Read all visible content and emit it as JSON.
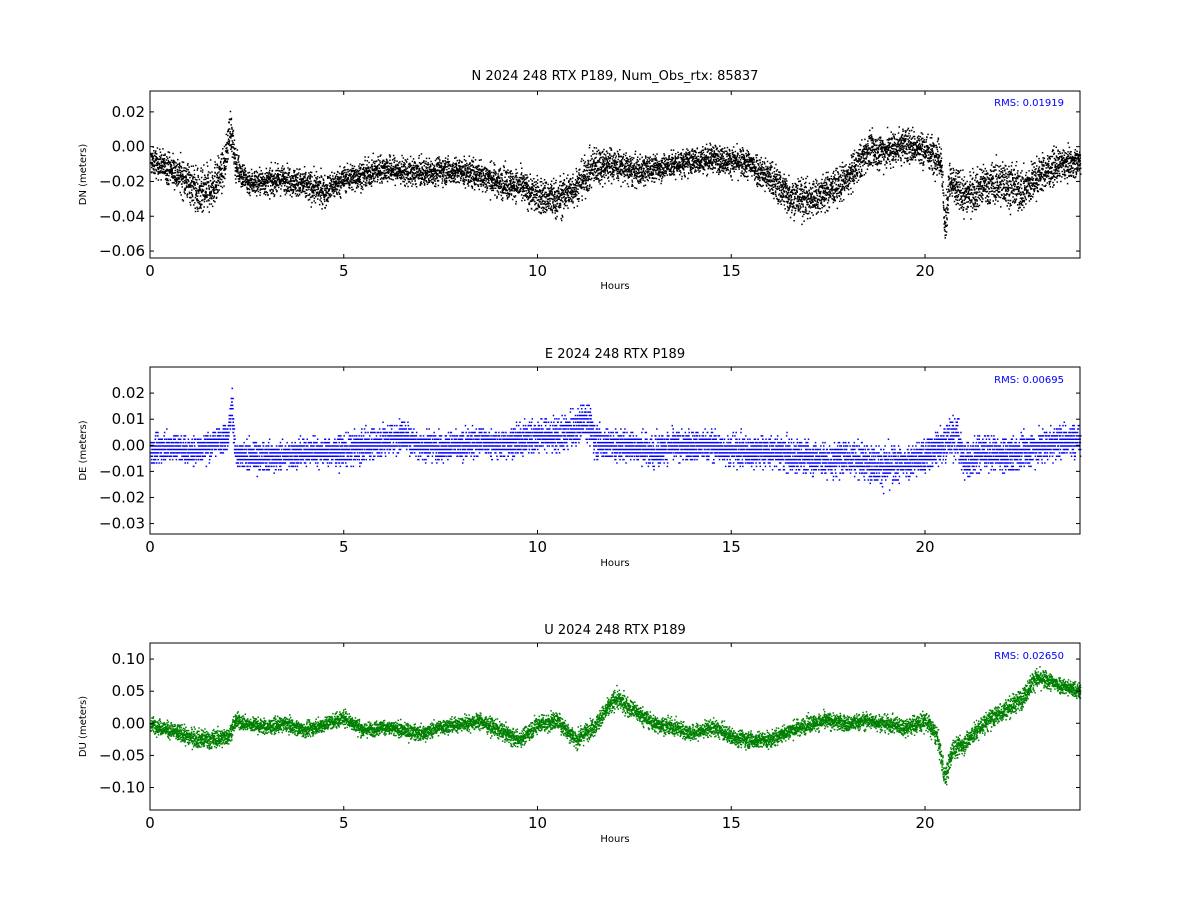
{
  "chart_data": [
    {
      "type": "scatter",
      "title": "N 2024 248 RTX  P189, Num_Obs_rtx: 85837",
      "xlabel": "Hours",
      "ylabel": "DN (meters)",
      "xlim": [
        0,
        24
      ],
      "ylim": [
        -0.064,
        0.032
      ],
      "xticks": [
        0,
        5,
        10,
        15,
        20
      ],
      "xtick_labels": [
        "0",
        "5",
        "10",
        "15",
        "20"
      ],
      "yticks": [
        0.02,
        0.0,
        -0.02,
        -0.04,
        -0.06
      ],
      "ytick_labels": [
        "0.02",
        "0.00",
        "−0.02",
        "−0.04",
        "−0.06"
      ],
      "rms_label": "RMS:  0.01919",
      "rms_color": "#0000ff",
      "color": "#000000",
      "grid": false,
      "series": [
        {
          "x": [
            0.0,
            0.5,
            1.0,
            1.3,
            1.6,
            1.9,
            2.05,
            2.2,
            2.5,
            3.0,
            3.5,
            4.0,
            4.5,
            5.0,
            5.5,
            6.0,
            6.5,
            7.0,
            7.5,
            8.0,
            8.5,
            9.0,
            9.5,
            10.0,
            10.5,
            11.0,
            11.5,
            12.0,
            12.5,
            13.0,
            13.5,
            14.0,
            14.5,
            15.0,
            15.5,
            16.0,
            16.5,
            17.0,
            17.5,
            18.0,
            18.5,
            19.0,
            19.5,
            20.0,
            20.4,
            20.5,
            20.6,
            21.0,
            21.5,
            22.0,
            22.5,
            23.0,
            23.5,
            24.0
          ],
          "center": [
            -0.008,
            -0.012,
            -0.02,
            -0.028,
            -0.022,
            -0.012,
            0.012,
            -0.01,
            -0.02,
            -0.02,
            -0.018,
            -0.022,
            -0.025,
            -0.018,
            -0.016,
            -0.012,
            -0.014,
            -0.015,
            -0.013,
            -0.014,
            -0.016,
            -0.02,
            -0.022,
            -0.028,
            -0.03,
            -0.022,
            -0.01,
            -0.01,
            -0.014,
            -0.012,
            -0.01,
            -0.008,
            -0.006,
            -0.008,
            -0.01,
            -0.018,
            -0.028,
            -0.03,
            -0.025,
            -0.018,
            -0.002,
            -0.002,
            0.002,
            -0.002,
            -0.006,
            -0.048,
            -0.02,
            -0.028,
            -0.022,
            -0.02,
            -0.025,
            -0.015,
            -0.01,
            -0.008
          ],
          "spread": [
            0.012,
            0.014,
            0.018,
            0.022,
            0.02,
            0.016,
            0.018,
            0.014,
            0.012,
            0.012,
            0.012,
            0.014,
            0.014,
            0.012,
            0.012,
            0.012,
            0.012,
            0.012,
            0.012,
            0.012,
            0.014,
            0.014,
            0.014,
            0.016,
            0.018,
            0.016,
            0.018,
            0.014,
            0.014,
            0.012,
            0.012,
            0.012,
            0.012,
            0.012,
            0.014,
            0.016,
            0.018,
            0.018,
            0.016,
            0.016,
            0.016,
            0.016,
            0.016,
            0.016,
            0.016,
            0.02,
            0.018,
            0.018,
            0.018,
            0.02,
            0.02,
            0.016,
            0.014,
            0.012
          ]
        }
      ]
    },
    {
      "type": "scatter",
      "title": "E 2024 248 RTX  P189",
      "xlabel": "Hours",
      "ylabel": "DE (meters)",
      "xlim": [
        0,
        24
      ],
      "ylim": [
        -0.034,
        0.03
      ],
      "xticks": [
        0,
        5,
        10,
        15,
        20
      ],
      "xtick_labels": [
        "0",
        "5",
        "10",
        "15",
        "20"
      ],
      "yticks": [
        0.02,
        0.01,
        0.0,
        -0.01,
        -0.02,
        -0.03
      ],
      "ytick_labels": [
        "0.02",
        "0.01",
        "0.00",
        "−0.01",
        "−0.02",
        "−0.03"
      ],
      "rms_label": "RMS:  0.00695",
      "rms_color": "#0000ff",
      "color": "#0000ff",
      "grid": false,
      "series": [
        {
          "x": [
            0.0,
            0.5,
            1.0,
            1.5,
            2.0,
            2.1,
            2.2,
            2.5,
            3.0,
            3.5,
            4.0,
            4.5,
            5.0,
            5.5,
            6.0,
            6.5,
            7.0,
            7.5,
            8.0,
            8.5,
            9.0,
            9.5,
            10.0,
            10.5,
            11.0,
            11.2,
            11.5,
            12.0,
            12.5,
            13.0,
            13.5,
            14.0,
            14.5,
            15.0,
            15.5,
            16.0,
            16.5,
            17.0,
            17.5,
            18.0,
            18.5,
            19.0,
            19.5,
            20.0,
            20.5,
            20.8,
            21.0,
            21.5,
            22.0,
            22.5,
            23.0,
            23.5,
            24.0
          ],
          "center": [
            -0.002,
            0.0,
            -0.002,
            0.0,
            0.004,
            0.016,
            -0.004,
            -0.004,
            -0.004,
            -0.004,
            -0.002,
            -0.002,
            -0.002,
            0.0,
            0.002,
            0.004,
            0.0,
            0.0,
            0.0,
            0.002,
            0.0,
            0.002,
            0.004,
            0.004,
            0.006,
            0.012,
            0.002,
            0.0,
            0.0,
            -0.002,
            0.0,
            0.0,
            0.0,
            -0.002,
            -0.002,
            -0.002,
            -0.004,
            -0.004,
            -0.006,
            -0.004,
            -0.006,
            -0.008,
            -0.006,
            -0.004,
            0.002,
            0.004,
            -0.006,
            -0.002,
            -0.004,
            -0.002,
            0.0,
            0.002,
            0.002
          ],
          "spread": [
            0.008,
            0.008,
            0.008,
            0.008,
            0.008,
            0.012,
            0.008,
            0.008,
            0.008,
            0.008,
            0.008,
            0.008,
            0.009,
            0.009,
            0.009,
            0.009,
            0.008,
            0.008,
            0.008,
            0.008,
            0.008,
            0.009,
            0.01,
            0.01,
            0.01,
            0.012,
            0.01,
            0.009,
            0.009,
            0.009,
            0.009,
            0.009,
            0.009,
            0.009,
            0.009,
            0.009,
            0.01,
            0.01,
            0.01,
            0.01,
            0.01,
            0.012,
            0.01,
            0.01,
            0.012,
            0.012,
            0.012,
            0.01,
            0.01,
            0.01,
            0.01,
            0.01,
            0.01
          ]
        }
      ]
    },
    {
      "type": "scatter",
      "title": "U 2024 248 RTX  P189",
      "xlabel": "Hours",
      "ylabel": "DU (meters)",
      "xlim": [
        0,
        24
      ],
      "ylim": [
        -0.135,
        0.125
      ],
      "xticks": [
        0,
        5,
        10,
        15,
        20
      ],
      "xtick_labels": [
        "0",
        "5",
        "10",
        "15",
        "20"
      ],
      "yticks": [
        0.1,
        0.05,
        0.0,
        -0.05,
        -0.1
      ],
      "ytick_labels": [
        "0.10",
        "0.05",
        "0.00",
        "−0.05",
        "−0.10"
      ],
      "rms_label": "RMS:  0.02650",
      "rms_color": "#0000ff",
      "color": "#008000",
      "grid": false,
      "series": [
        {
          "x": [
            0.0,
            0.5,
            1.0,
            1.5,
            2.0,
            2.2,
            2.5,
            3.0,
            3.5,
            4.0,
            4.5,
            5.0,
            5.5,
            6.0,
            6.5,
            7.0,
            7.5,
            8.0,
            8.5,
            9.0,
            9.5,
            10.0,
            10.5,
            11.0,
            11.5,
            12.0,
            12.5,
            13.0,
            13.5,
            14.0,
            14.5,
            15.0,
            15.5,
            16.0,
            16.5,
            17.0,
            17.5,
            18.0,
            18.5,
            19.0,
            19.5,
            20.0,
            20.3,
            20.5,
            20.7,
            21.0,
            21.5,
            22.0,
            22.5,
            22.8,
            23.0,
            23.5,
            24.0
          ],
          "center": [
            0.0,
            -0.01,
            -0.02,
            -0.025,
            -0.02,
            0.005,
            0.0,
            -0.005,
            0.0,
            -0.01,
            0.0,
            0.01,
            -0.01,
            -0.005,
            -0.01,
            -0.015,
            -0.005,
            0.0,
            0.005,
            -0.01,
            -0.025,
            0.0,
            0.005,
            -0.025,
            0.0,
            0.04,
            0.02,
            0.0,
            -0.005,
            -0.015,
            -0.005,
            -0.02,
            -0.025,
            -0.025,
            -0.01,
            0.0,
            0.005,
            0.0,
            0.005,
            0.0,
            -0.005,
            0.005,
            -0.02,
            -0.085,
            -0.04,
            -0.03,
            0.0,
            0.02,
            0.04,
            0.07,
            0.07,
            0.06,
            0.05
          ],
          "spread": [
            0.018,
            0.02,
            0.022,
            0.024,
            0.02,
            0.02,
            0.018,
            0.018,
            0.018,
            0.018,
            0.018,
            0.02,
            0.018,
            0.018,
            0.018,
            0.018,
            0.018,
            0.018,
            0.02,
            0.02,
            0.02,
            0.022,
            0.022,
            0.022,
            0.022,
            0.024,
            0.022,
            0.02,
            0.02,
            0.02,
            0.02,
            0.02,
            0.02,
            0.02,
            0.02,
            0.02,
            0.02,
            0.02,
            0.02,
            0.02,
            0.022,
            0.024,
            0.024,
            0.028,
            0.026,
            0.024,
            0.024,
            0.024,
            0.024,
            0.024,
            0.022,
            0.02,
            0.02
          ]
        }
      ]
    }
  ]
}
